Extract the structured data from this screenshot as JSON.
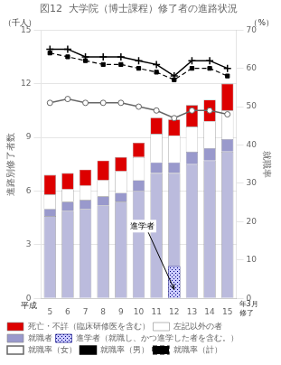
{
  "chart_data": {
    "type": "bar",
    "title": "図12  大学院（博士課程）修了者の進路状況",
    "categories": [
      5,
      6,
      7,
      8,
      9,
      10,
      11,
      12,
      13,
      14,
      15
    ],
    "stacked": true,
    "grid": true,
    "legend": "bottom",
    "ylabel": "進路別修了者数",
    "y2label": "就職率",
    "y_unit": "（千人）",
    "y2_unit": "（%）",
    "xlabel_left": "平成",
    "xlabel_right": "年3月\n修了",
    "ylim": [
      0,
      15
    ],
    "yticks": [
      0,
      3,
      6,
      9,
      12,
      15
    ],
    "y2lim": [
      0,
      70
    ],
    "y2ticks": [
      0,
      10,
      20,
      30,
      40,
      50,
      60,
      70
    ],
    "series": [
      {
        "color": "#bbbbdd",
        "values": [
          4.6,
          4.9,
          5.0,
          5.2,
          5.4,
          6.0,
          7.0,
          7.0,
          7.5,
          7.7,
          8.2
        ]
      },
      {
        "name": "就職者",
        "color": "#9999cc",
        "values": [
          0.4,
          0.5,
          0.5,
          0.5,
          0.5,
          0.6,
          0.6,
          0.6,
          0.7,
          0.7,
          0.7
        ]
      },
      {
        "name": "左記以外の者",
        "color": "#ffffff",
        "values": [
          0.8,
          0.7,
          0.8,
          0.9,
          1.2,
          1.3,
          1.6,
          1.5,
          1.4,
          1.5,
          1.6
        ]
      },
      {
        "name": "死亡・不詳（臨床研修医を含む）",
        "color": "#dd0000",
        "values": [
          1.1,
          0.9,
          0.9,
          1.1,
          0.8,
          0.8,
          0.9,
          0.9,
          1.2,
          1.2,
          1.5
        ]
      },
      {
        "name": "進学者（就職し、かつ進学した者を含む。）",
        "color": "#ccccff",
        "stacked": false,
        "values": [
          0.0,
          0.0,
          0.0,
          0.0,
          0.0,
          0.0,
          0.0,
          1.8,
          0.0,
          0.0,
          0.0
        ]
      },
      {
        "name": "就職率（女）",
        "type": "line",
        "axis": "y2",
        "color": "#666666",
        "marker": "circle",
        "line_style": "solid",
        "values": [
          51,
          52,
          51,
          51,
          51,
          50,
          49,
          47,
          49,
          49,
          48
        ]
      },
      {
        "name": "就職率（男）",
        "type": "line",
        "axis": "y2",
        "color": "#000000",
        "marker": "plus",
        "line_style": "solid",
        "values": [
          65,
          65,
          63,
          63,
          63,
          62,
          61,
          58,
          62,
          62,
          60
        ]
      },
      {
        "name": "就職率（計）",
        "type": "line",
        "axis": "y2",
        "color": "#000000",
        "marker": "square",
        "line_style": "dashed",
        "values": [
          64,
          63,
          62,
          61,
          61,
          60,
          59,
          57,
          60,
          60,
          58
        ]
      }
    ],
    "annotations": [
      {
        "text": "進学者",
        "x": 12,
        "y": 0.5
      }
    ]
  }
}
